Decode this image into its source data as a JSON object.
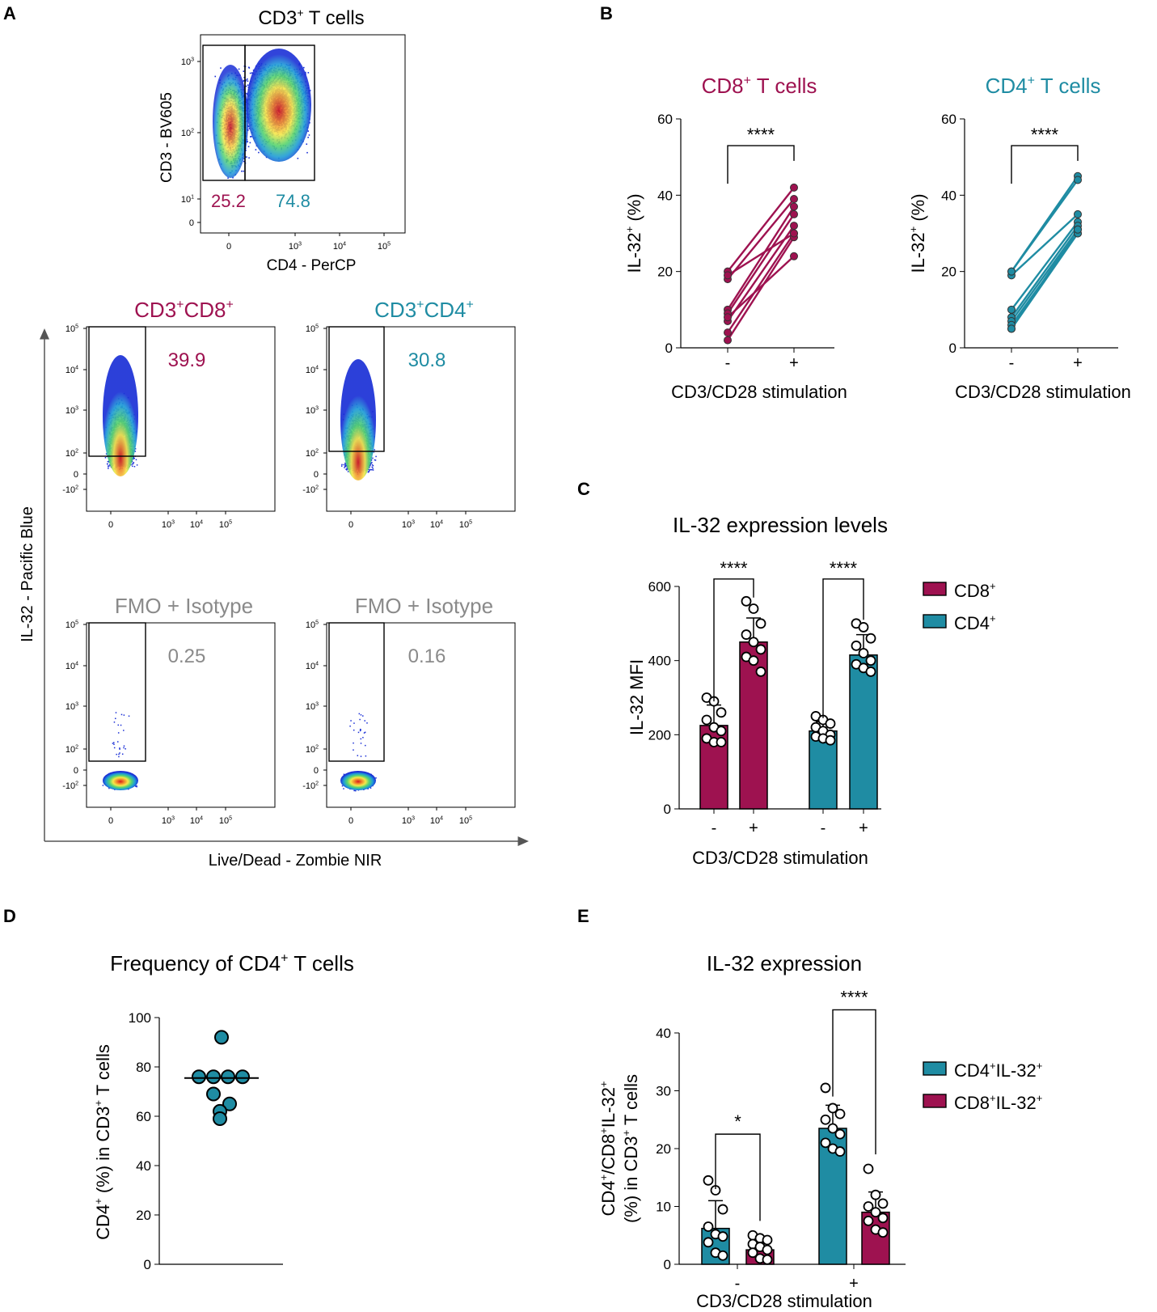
{
  "colors": {
    "cd8": "#9e1250",
    "cd4": "#1f8ca3",
    "gray": "#8a8a8a",
    "black": "#000000"
  },
  "panel_labels": [
    "A",
    "B",
    "C",
    "D",
    "E"
  ],
  "panelA": {
    "top_plot": {
      "title_main": "CD3",
      "title_sup": "+",
      "title_rest": " T cells",
      "y_label": "CD3 - BV605",
      "x_label": "CD4 - PerCP",
      "y_ticks": [
        {
          "b": "10",
          "e": "3"
        },
        {
          "b": "10",
          "e": "2"
        },
        {
          "b": "10",
          "e": "1"
        },
        {
          "b": "0",
          "e": ""
        }
      ],
      "x_ticks": [
        {
          "b": "0",
          "e": ""
        },
        {
          "b": "10",
          "e": "3"
        },
        {
          "b": "10",
          "e": "4"
        },
        {
          "b": "10",
          "e": "5"
        }
      ],
      "left_value": "25.2",
      "right_value": "74.8"
    },
    "y_axis_label": "IL-32 - Pacific Blue",
    "x_axis_label": "Live/Dead - Zombie NIR",
    "plot_y_ticks": [
      {
        "b": "10",
        "e": "5"
      },
      {
        "b": "10",
        "e": "4"
      },
      {
        "b": "10",
        "e": "3"
      },
      {
        "b": "10",
        "e": "2"
      },
      {
        "b": "0",
        "e": ""
      },
      {
        "b": "-10",
        "e": "2"
      }
    ],
    "plot_x_ticks": [
      {
        "b": "0",
        "e": ""
      },
      {
        "b": "10",
        "e": "3"
      },
      {
        "b": "10",
        "e": "4"
      },
      {
        "b": "10",
        "e": "5"
      }
    ],
    "plots": [
      {
        "title": [
          {
            "t": "CD3",
            "s": false
          },
          {
            "t": "+",
            "s": true
          },
          {
            "t": "CD8",
            "s": false
          },
          {
            "t": "+",
            "s": true
          }
        ],
        "value": "39.9",
        "color": "cd8"
      },
      {
        "title": [
          {
            "t": "CD3",
            "s": false
          },
          {
            "t": "+",
            "s": true
          },
          {
            "t": "CD4",
            "s": false
          },
          {
            "t": "+",
            "s": true
          }
        ],
        "value": "30.8",
        "color": "cd4"
      },
      {
        "title": [
          {
            "t": "FMO + Isotype",
            "s": false
          }
        ],
        "value": "0.25",
        "color": "gray"
      },
      {
        "title": [
          {
            "t": "FMO + Isotype",
            "s": false
          }
        ],
        "value": "0.16",
        "color": "gray"
      }
    ]
  },
  "chart_data": [
    {
      "id": "B-CD8",
      "type": "line",
      "title_main": "CD8",
      "title_sup": "+",
      "title_rest": " T cells",
      "ylabel_main": "IL-32",
      "ylabel_sup": "+",
      "ylabel_rest": " (%)",
      "xlabel": "CD3/CD28 stimulation",
      "categories": [
        "-",
        "+"
      ],
      "ylim": [
        0,
        60
      ],
      "yticks": [
        0,
        20,
        40,
        60
      ],
      "pairs": [
        [
          20,
          42
        ],
        [
          18,
          39
        ],
        [
          10,
          37
        ],
        [
          9,
          35
        ],
        [
          7,
          32
        ],
        [
          4,
          30
        ],
        [
          2,
          29
        ],
        [
          19,
          30
        ],
        [
          8,
          24
        ]
      ],
      "significance": "****"
    },
    {
      "id": "B-CD4",
      "type": "line",
      "title_main": "CD4",
      "title_sup": "+",
      "title_rest": " T cells",
      "ylabel_main": "IL-32",
      "ylabel_sup": "+",
      "ylabel_rest": " (%)",
      "xlabel": "CD3/CD28 stimulation",
      "categories": [
        "-",
        "+"
      ],
      "ylim": [
        0,
        60
      ],
      "yticks": [
        0,
        20,
        40,
        60
      ],
      "pairs": [
        [
          20,
          45
        ],
        [
          19,
          35
        ],
        [
          10,
          33
        ],
        [
          8,
          32
        ],
        [
          7,
          31
        ],
        [
          6,
          30
        ],
        [
          5,
          30
        ],
        [
          20,
          44
        ],
        [
          5,
          31
        ]
      ],
      "significance": "****"
    },
    {
      "id": "C",
      "type": "bar",
      "title": "IL-32 expression levels",
      "ylabel": "IL-32 MFI",
      "xlabel": "CD3/CD28 stimulation",
      "ylim": [
        0,
        600
      ],
      "yticks": [
        0,
        200,
        400,
        600
      ],
      "categories": [
        "-",
        "+",
        "-",
        "+"
      ],
      "legend": [
        {
          "name": "CD8",
          "sup": "+",
          "color": "cd8"
        },
        {
          "name": "CD4",
          "sup": "+",
          "color": "cd4"
        }
      ],
      "bars": [
        {
          "series": "CD8+",
          "stim": "-",
          "mean": 225,
          "sd": 55,
          "points": [
            300,
            290,
            260,
            240,
            220,
            210,
            190,
            180,
            180
          ]
        },
        {
          "series": "CD8+",
          "stim": "+",
          "mean": 450,
          "sd": 65,
          "points": [
            560,
            540,
            500,
            470,
            450,
            430,
            410,
            400,
            370
          ]
        },
        {
          "series": "CD4+",
          "stim": "-",
          "mean": 210,
          "sd": 25,
          "points": [
            250,
            240,
            230,
            220,
            210,
            200,
            195,
            190,
            185
          ]
        },
        {
          "series": "CD4+",
          "stim": "+",
          "mean": 415,
          "sd": 55,
          "points": [
            500,
            490,
            460,
            440,
            420,
            400,
            390,
            380,
            370
          ]
        }
      ],
      "significance": [
        "****",
        "****"
      ]
    },
    {
      "id": "D",
      "type": "scatter",
      "title_main": "Frequency of CD4",
      "title_sup": "+",
      "title_rest": " T cells",
      "ylabel_parts": [
        {
          "t": "CD4",
          "s": false
        },
        {
          "t": "+",
          "s": true
        },
        {
          "t": " (%) in CD3",
          "s": false
        },
        {
          "t": "+",
          "s": true
        },
        {
          "t": " T cells",
          "s": false
        }
      ],
      "ylim": [
        0,
        100
      ],
      "yticks": [
        0,
        20,
        40,
        60,
        80,
        100
      ],
      "points": [
        92,
        76,
        76,
        76,
        76,
        69,
        65,
        62,
        59
      ],
      "median": 75.5
    },
    {
      "id": "E",
      "type": "bar",
      "title": "IL-32 expression",
      "ylabel_line1": [
        {
          "t": "CD4",
          "s": false
        },
        {
          "t": "+",
          "s": true
        },
        {
          "t": "/CD8",
          "s": false
        },
        {
          "t": "+",
          "s": true
        },
        {
          "t": "IL-32",
          "s": false
        },
        {
          "t": "+",
          "s": true
        }
      ],
      "ylabel_line2": [
        {
          "t": "(%) in CD3",
          "s": false
        },
        {
          "t": "+",
          "s": true
        },
        {
          "t": " T cells",
          "s": false
        }
      ],
      "xlabel": "CD3/CD28 stimulation",
      "ylim": [
        0,
        40
      ],
      "yticks": [
        0,
        10,
        20,
        30,
        40
      ],
      "categories": [
        "-",
        "+"
      ],
      "legend": [
        {
          "name": "CD4",
          "sup1": "+",
          "name2": "IL-32",
          "sup2": "+",
          "color": "cd4"
        },
        {
          "name": "CD8",
          "sup1": "+",
          "name2": "IL-32",
          "sup2": "+",
          "color": "cd8"
        }
      ],
      "bars": [
        {
          "series": "CD4+IL-32+",
          "stim": "-",
          "mean": 6.2,
          "sd": 4.8,
          "points": [
            14.5,
            12.8,
            9.5,
            6.5,
            5.2,
            4.8,
            3.8,
            2.0,
            1.5
          ]
        },
        {
          "series": "CD8+IL-32+",
          "stim": "-",
          "mean": 2.5,
          "sd": 1.3,
          "points": [
            5.0,
            4.5,
            4.2,
            3.5,
            3.0,
            2.5,
            2.0,
            1.0,
            0.8
          ]
        },
        {
          "series": "CD4+IL-32+",
          "stim": "+",
          "mean": 23.5,
          "sd": 4.0,
          "points": [
            30.5,
            27.0,
            26.0,
            25.0,
            23.5,
            22.5,
            21.0,
            20.0,
            19.5
          ]
        },
        {
          "series": "CD8+IL-32+",
          "stim": "+",
          "mean": 9.0,
          "sd": 3.5,
          "points": [
            16.5,
            12.0,
            10.5,
            10.0,
            9.0,
            8.0,
            7.5,
            6.0,
            5.5
          ]
        }
      ],
      "significance": [
        "*",
        "****"
      ]
    }
  ]
}
